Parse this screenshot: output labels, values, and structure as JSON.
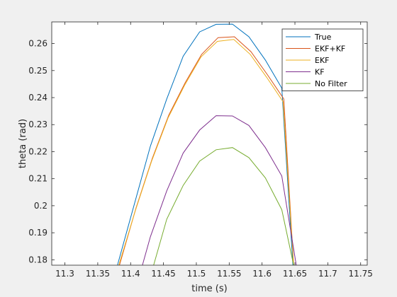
{
  "chart_data": {
    "type": "line",
    "title": "",
    "xlabel": "time (s)",
    "ylabel": "theta (rad)",
    "xlim": [
      11.28,
      11.76
    ],
    "ylim": [
      0.178,
      0.268
    ],
    "xticks": [
      11.3,
      11.35,
      11.4,
      11.45,
      11.5,
      11.55,
      11.6,
      11.65,
      11.7,
      11.75
    ],
    "xtick_labels": [
      "11.3",
      "11.35",
      "11.4",
      "11.45",
      "11.5",
      "11.55",
      "11.6",
      "11.65",
      "11.7",
      "11.75"
    ],
    "yticks": [
      0.18,
      0.19,
      0.2,
      0.21,
      0.22,
      0.23,
      0.24,
      0.25,
      0.26
    ],
    "ytick_labels": [
      "0.18",
      "0.19",
      "0.2",
      "0.21",
      "0.22",
      "0.23",
      "0.24",
      "0.25",
      "0.26"
    ],
    "grid": false,
    "legend_position": "top-right",
    "series": [
      {
        "name": "True",
        "color": "#0072BD",
        "x": [
          11.38,
          11.405,
          11.43,
          11.455,
          11.48,
          11.505,
          11.53,
          11.555,
          11.58,
          11.605,
          11.63,
          11.647
        ],
        "y": [
          0.178,
          0.2,
          0.222,
          0.2395,
          0.2553,
          0.2643,
          0.2671,
          0.2672,
          0.2625,
          0.2539,
          0.2435,
          0.178
        ]
      },
      {
        "name": "EKF+KF",
        "color": "#D95319",
        "x": [
          11.383,
          11.408,
          11.433,
          11.458,
          11.483,
          11.508,
          11.533,
          11.558,
          11.583,
          11.608,
          11.633,
          11.648
        ],
        "y": [
          0.178,
          0.199,
          0.2175,
          0.2335,
          0.2455,
          0.256,
          0.2622,
          0.2625,
          0.257,
          0.2485,
          0.2395,
          0.178
        ]
      },
      {
        "name": "EKF",
        "color": "#EDB120",
        "x": [
          11.382,
          11.407,
          11.432,
          11.457,
          11.482,
          11.507,
          11.532,
          11.557,
          11.582,
          11.607,
          11.632,
          11.648
        ],
        "y": [
          0.178,
          0.198,
          0.2165,
          0.2325,
          0.2445,
          0.255,
          0.2608,
          0.2615,
          0.256,
          0.2475,
          0.2385,
          0.178
        ]
      },
      {
        "name": "KF",
        "color": "#7E2F8E",
        "x": [
          11.418,
          11.43,
          11.455,
          11.48,
          11.505,
          11.53,
          11.555,
          11.58,
          11.605,
          11.63,
          11.652
        ],
        "y": [
          0.178,
          0.1885,
          0.2055,
          0.2195,
          0.228,
          0.2333,
          0.2332,
          0.2297,
          0.2215,
          0.211,
          0.178
        ]
      },
      {
        "name": "No Filter",
        "color": "#77AC30",
        "x": [
          11.435,
          11.455,
          11.48,
          11.505,
          11.53,
          11.555,
          11.58,
          11.605,
          11.63,
          11.648
        ],
        "y": [
          0.178,
          0.195,
          0.2075,
          0.2165,
          0.2207,
          0.2215,
          0.2178,
          0.2103,
          0.1985,
          0.178
        ]
      }
    ]
  }
}
